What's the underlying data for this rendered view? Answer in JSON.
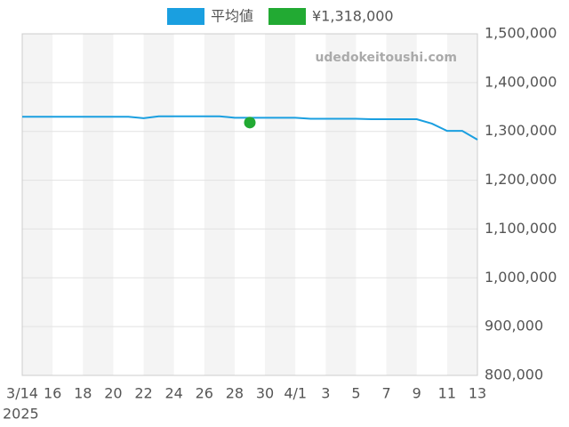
{
  "chart_data": {
    "type": "line",
    "categories": [
      "3/14",
      null,
      "16",
      null,
      "18",
      null,
      "20",
      null,
      "22",
      null,
      "24",
      null,
      "26",
      null,
      "28",
      null,
      "30",
      null,
      "4/1",
      null,
      "3",
      null,
      "5",
      null,
      "7",
      null,
      "9",
      null,
      "11",
      null,
      "13"
    ],
    "x_sublabel": "2025",
    "watermark": "udedokeitoushi.com",
    "series": [
      {
        "name": "平均値",
        "color": "#1a9fe0",
        "type": "line",
        "values": [
          1330000,
          1330000,
          1330000,
          1330000,
          1330000,
          1330000,
          1330000,
          1330000,
          1327000,
          1331000,
          1331000,
          1331000,
          1331000,
          1331000,
          1328000,
          1328000,
          1328000,
          1328000,
          1328000,
          1326000,
          1326000,
          1326000,
          1326000,
          1325000,
          1325000,
          1325000,
          1325000,
          1316000,
          1301000,
          1301000,
          1283000
        ]
      },
      {
        "name": "¥1,318,000",
        "color": "#22aa33",
        "type": "scatter",
        "values": [
          null,
          null,
          null,
          null,
          null,
          null,
          null,
          null,
          null,
          null,
          null,
          null,
          null,
          null,
          null,
          1318000,
          null,
          null,
          null,
          null,
          null,
          null,
          null,
          null,
          null,
          null,
          null,
          null,
          null,
          null,
          null
        ]
      }
    ],
    "ylim": [
      800000,
      1500000
    ],
    "yticks": [
      {
        "value": 800000,
        "label": "800,000"
      },
      {
        "value": 900000,
        "label": "900,000"
      },
      {
        "value": 1000000,
        "label": "1,000,000"
      },
      {
        "value": 1100000,
        "label": "1,100,000"
      },
      {
        "value": 1200000,
        "label": "1,200,000"
      },
      {
        "value": 1300000,
        "label": "1,300,000"
      },
      {
        "value": 1400000,
        "label": "1,400,000"
      },
      {
        "value": 1500000,
        "label": "1,500,000"
      }
    ],
    "grid": true
  }
}
